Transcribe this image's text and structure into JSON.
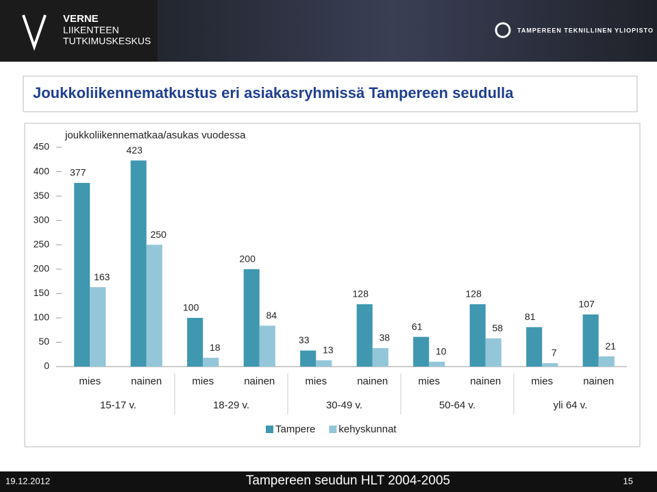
{
  "header": {
    "logo_lines": [
      "VERNE",
      "LIIKENTEEN",
      "TUTKIMUSKESKUS"
    ],
    "university": "TAMPEREEN TEKNILLINEN YLIOPISTO"
  },
  "slide_title": "Joukkoliikennematkustus eri asiakasryhmissä Tampereen seudulla",
  "chart_data": {
    "type": "bar",
    "subtitle": "joukkoliikennematkaa/asukas vuodessa",
    "categories": [
      "mies",
      "nainen",
      "mies",
      "nainen",
      "mies",
      "nainen",
      "mies",
      "nainen",
      "mies",
      "nainen"
    ],
    "groups": [
      "15-17 v.",
      "18-29 v.",
      "30-49 v.",
      "50-64 v.",
      "yli 64 v."
    ],
    "series": [
      {
        "name": "Tampere",
        "color": "#3f97b0",
        "values": [
          377,
          423,
          100,
          200,
          33,
          128,
          61,
          128,
          81,
          107
        ]
      },
      {
        "name": "kehyskunnat",
        "color": "#93c6d8",
        "values": [
          163,
          250,
          18,
          84,
          13,
          38,
          10,
          58,
          7,
          21
        ]
      }
    ],
    "ylim": [
      0,
      450
    ],
    "yticks": [
      0,
      50,
      100,
      150,
      200,
      250,
      300,
      350,
      400,
      450
    ],
    "grid": false,
    "legend": "bottom"
  },
  "footer": {
    "date": "19.12.2012",
    "source": "Tampereen seudun HLT 2004-2005",
    "page": "15"
  }
}
